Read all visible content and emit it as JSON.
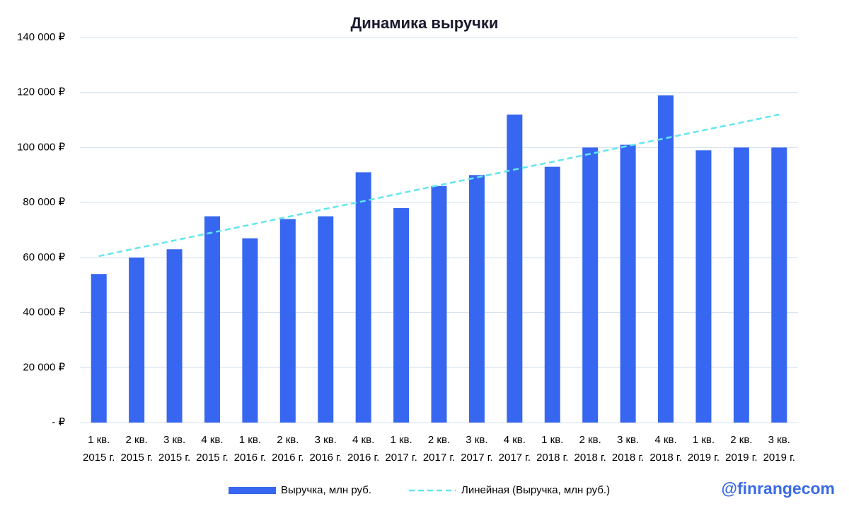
{
  "chart_data": {
    "type": "bar",
    "title": "Динамика выручки",
    "categories": [
      "1 кв. 2015 г.",
      "2 кв. 2015 г.",
      "3 кв. 2015 г.",
      "4 кв. 2015 г.",
      "1 кв. 2016 г.",
      "2 кв. 2016 г.",
      "3 кв. 2016 г.",
      "4 кв. 2016 г.",
      "1 кв. 2017 г.",
      "2 кв. 2017 г.",
      "3 кв. 2017 г.",
      "4 кв. 2017 г.",
      "1 кв. 2018 г.",
      "2 кв. 2018 г.",
      "3 кв. 2018 г.",
      "4 кв. 2018 г.",
      "1 кв. 2019 г.",
      "2 кв. 2019 г.",
      "3 кв. 2019 г."
    ],
    "series": [
      {
        "name": "Выручка, млн руб.",
        "type": "bar",
        "color": "#3767f0",
        "values": [
          54000,
          60000,
          63000,
          75000,
          67000,
          74000,
          75000,
          91000,
          78000,
          86000,
          90000,
          112000,
          93000,
          100000,
          101000,
          119000,
          99000,
          100000,
          100000
        ]
      },
      {
        "name": "Линейная (Выручка, млн руб.)",
        "type": "line",
        "dashed": true,
        "color": "#62e6ef",
        "values": [
          60500,
          63400,
          66200,
          69100,
          71900,
          74800,
          77700,
          80500,
          83400,
          86300,
          89100,
          92000,
          94800,
          97700,
          100600,
          103400,
          106300,
          109100,
          112000
        ]
      }
    ],
    "ylim": [
      0,
      140000
    ],
    "yticks": [
      {
        "value": 0,
        "label": "-   ₽"
      },
      {
        "value": 20000,
        "label": "20 000 ₽"
      },
      {
        "value": 40000,
        "label": "40 000 ₽"
      },
      {
        "value": 60000,
        "label": "60 000 ₽"
      },
      {
        "value": 80000,
        "label": "80 000 ₽"
      },
      {
        "value": 100000,
        "label": "100 000 ₽"
      },
      {
        "value": 120000,
        "label": "120 000 ₽"
      },
      {
        "value": 140000,
        "label": "140 000 ₽"
      }
    ],
    "grid": true,
    "grid_color": "#d3e0f0",
    "legend": "bottom",
    "annotation": "@finrangecom",
    "annotation_color": "#3a6ae6"
  }
}
